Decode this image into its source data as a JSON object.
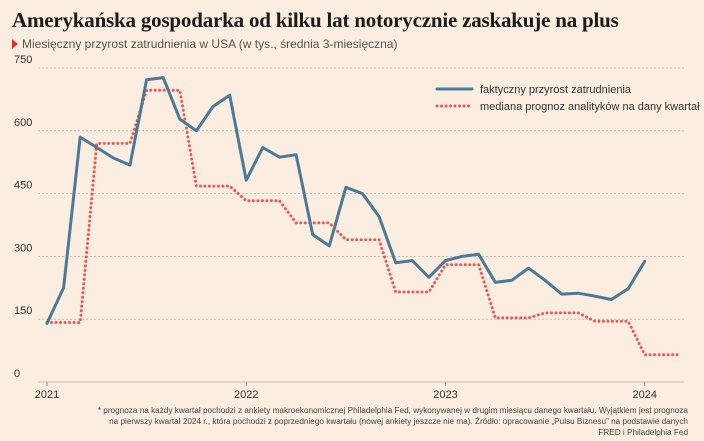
{
  "header": {
    "title": "Amerykańska gospodarka od kilku lat notorycznie zaskakuje na plus",
    "subtitle": "Miesięczny przyrost zatrudnienia w USA (w tys., średnia 3-miesięczna)"
  },
  "footnote": {
    "line1": "* prognoza na każdy kwartał pochodzi z ankiety makroekonomicznej Philadelphia Fed, wykonywanej w drugim miesiącu danego kwartału. Wyjątkiem jest prognoza",
    "line2": "na pierwszy kwartał 2024 r., która pochodzi z poprzedniego kwartału (nowej ankiety jeszcze nie ma). Źródło: opracowanie „Pulsu Biznesu” na podstawie danych FRED i Philadelphia Fed"
  },
  "colors": {
    "actual": "#4b7a98",
    "forecast": "#e85a5a",
    "grid": "#b8b0a8",
    "background": "#fbeee0"
  },
  "chart_data": {
    "type": "line",
    "ylim": [
      0,
      750
    ],
    "yticks": [
      "0",
      "150",
      "300",
      "450",
      "600",
      "750"
    ],
    "xlim": [
      2021.0,
      2024.2
    ],
    "xticks": [
      {
        "value": 2021.0,
        "label": "2021"
      },
      {
        "value": 2022.0,
        "label": "2022"
      },
      {
        "value": 2023.0,
        "label": "2023"
      },
      {
        "value": 2024.0,
        "label": "2024"
      }
    ],
    "grid": "horizontal dashed",
    "legend_position": "top-right",
    "series": [
      {
        "name": "faktyczny przyrost zatrudnienia",
        "style": "solid",
        "color": "#4b7a98",
        "x": [
          2021.0,
          2021.0833,
          2021.1667,
          2021.25,
          2021.3333,
          2021.4167,
          2021.5,
          2021.5833,
          2021.6667,
          2021.75,
          2021.8333,
          2021.9167,
          2022.0,
          2022.0833,
          2022.1667,
          2022.25,
          2022.3333,
          2022.4167,
          2022.5,
          2022.5833,
          2022.6667,
          2022.75,
          2022.8333,
          2022.9167,
          2023.0,
          2023.0833,
          2023.1667,
          2023.25,
          2023.3333,
          2023.4167,
          2023.5,
          2023.5833,
          2023.6667,
          2023.75,
          2023.8333,
          2023.9167,
          2024.0
        ],
        "values": [
          140,
          225,
          585,
          560,
          535,
          518,
          722,
          727,
          628,
          600,
          658,
          685,
          482,
          560,
          537,
          543,
          352,
          325,
          465,
          450,
          395,
          285,
          290,
          250,
          290,
          300,
          305,
          238,
          243,
          272,
          243,
          210,
          212,
          205,
          197,
          223,
          288
        ]
      },
      {
        "name": "mediana prognoz analityków na dany kwartał",
        "style": "dotted",
        "color": "#e85a5a",
        "x": [
          2021.0,
          2021.1667,
          2021.25,
          2021.4167,
          2021.5,
          2021.6667,
          2021.75,
          2021.9167,
          2022.0,
          2022.1667,
          2022.25,
          2022.4167,
          2022.5,
          2022.6667,
          2022.75,
          2022.9167,
          2023.0,
          2023.1667,
          2023.25,
          2023.4167,
          2023.5,
          2023.6667,
          2023.75,
          2023.9167,
          2024.0,
          2024.1667
        ],
        "values": [
          142,
          142,
          570,
          570,
          697,
          697,
          468,
          468,
          433,
          433,
          380,
          380,
          340,
          340,
          215,
          215,
          280,
          280,
          153,
          153,
          165,
          165,
          145,
          145,
          65,
          65
        ]
      }
    ]
  }
}
